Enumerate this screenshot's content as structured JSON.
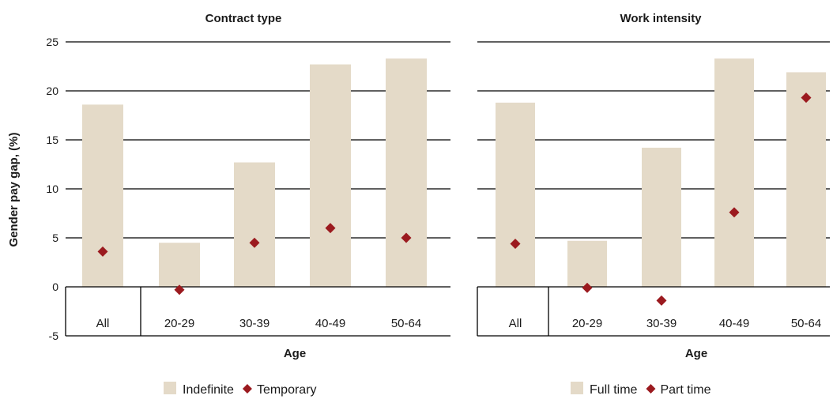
{
  "ylabel": "Gender pay gap, (%)",
  "y_ticks": [
    "25",
    "20",
    "15",
    "10",
    "5",
    "0",
    "-5"
  ],
  "colors": {
    "bar": "#e4dac8",
    "marker": "#9b1a1f",
    "gridline": "#000000"
  },
  "chart_data": [
    {
      "type": "bar",
      "title": "Contract type",
      "xlabel": "Age",
      "ylabel": "Gender pay gap, (%)",
      "ylim": [
        -5,
        25
      ],
      "categories": [
        "All",
        "20-29",
        "30-39",
        "40-49",
        "50-64"
      ],
      "series": [
        {
          "name": "Indefinite",
          "type": "bar",
          "values": [
            18.6,
            4.5,
            12.7,
            22.7,
            23.3
          ]
        },
        {
          "name": "Temporary",
          "type": "scatter",
          "marker": "diamond",
          "values": [
            3.6,
            -0.3,
            4.5,
            6.0,
            5.0
          ]
        }
      ],
      "legend": {
        "position": "bottom",
        "labels": [
          "Indefinite",
          "Temporary"
        ]
      },
      "grid": true
    },
    {
      "type": "bar",
      "title": "Work intensity",
      "xlabel": "Age",
      "ylim": [
        -5,
        25
      ],
      "categories": [
        "All",
        "20-29",
        "30-39",
        "40-49",
        "50-64"
      ],
      "series": [
        {
          "name": "Full time",
          "type": "bar",
          "values": [
            18.8,
            4.7,
            14.2,
            23.3,
            21.9
          ]
        },
        {
          "name": "Part time",
          "type": "scatter",
          "marker": "diamond",
          "values": [
            4.4,
            -0.1,
            -1.4,
            7.6,
            19.3
          ]
        }
      ],
      "legend": {
        "position": "bottom",
        "labels": [
          "Full time",
          "Part time"
        ]
      },
      "grid": true
    }
  ]
}
